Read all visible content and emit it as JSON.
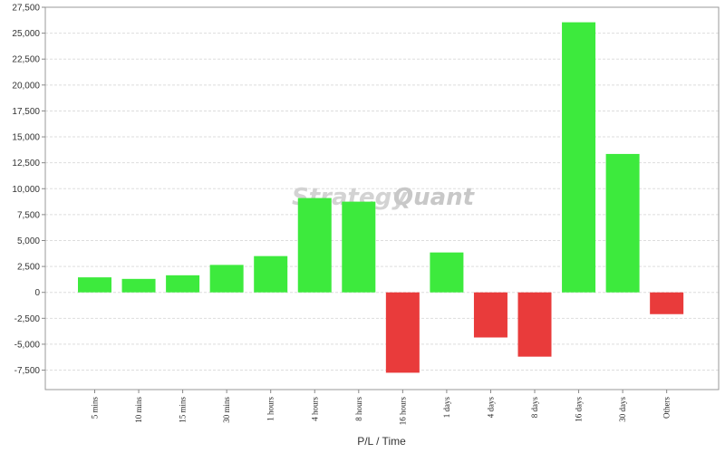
{
  "chart_data": {
    "type": "bar",
    "title": "",
    "xlabel": "P/L / Time",
    "ylabel": "",
    "ylim": [
      -9375,
      27500
    ],
    "yticks": [
      -7500,
      -5000,
      -2500,
      0,
      2500,
      5000,
      7500,
      10000,
      12500,
      15000,
      17500,
      20000,
      22500,
      25000,
      27500
    ],
    "ytick_labels": [
      "-7,500",
      "-5,000",
      "-2,500",
      "0",
      "2,500",
      "5,000",
      "7,500",
      "10,000",
      "12,500",
      "15,000",
      "17,500",
      "20,000",
      "22,500",
      "25,000",
      "27,500"
    ],
    "grid": true,
    "categories": [
      "5 mins",
      "10 mins",
      "15 mins",
      "30 mins",
      "1 hours",
      "4 hours",
      "8 hours",
      "16 hours",
      "1 days",
      "4 days",
      "8 days",
      "16 days",
      "30 days",
      "Others"
    ],
    "values": [
      1450,
      1300,
      1650,
      2650,
      3500,
      9100,
      8750,
      -7750,
      3850,
      -4350,
      -6200,
      26050,
      13350,
      -2100
    ],
    "colors": {
      "positive": "#3dea3d",
      "negative": "#e93b3b"
    }
  },
  "watermark": {
    "part1": "Strategy",
    "part2": "Quant"
  }
}
